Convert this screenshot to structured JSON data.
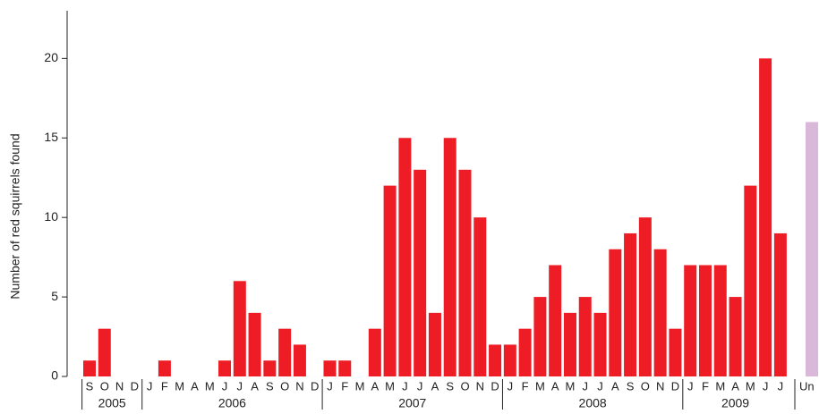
{
  "chart_data": {
    "type": "bar",
    "y_label": "Number of red squirrels found",
    "color": "#ee1c25",
    "groups": [
      {
        "label": "2005",
        "categories": [
          "S",
          "O",
          "N",
          "D"
        ]
      },
      {
        "label": "2006",
        "categories": [
          "J",
          "F",
          "M",
          "A",
          "M",
          "J",
          "J",
          "A",
          "S",
          "O",
          "N",
          "D"
        ]
      },
      {
        "label": "2007",
        "categories": [
          "J",
          "F",
          "M",
          "A",
          "M",
          "J",
          "J",
          "A",
          "S",
          "O",
          "N",
          "D"
        ]
      },
      {
        "label": "2008",
        "categories": [
          "J",
          "F",
          "M",
          "A",
          "M",
          "J",
          "J",
          "A",
          "S",
          "O",
          "N",
          "D"
        ]
      },
      {
        "label": "2009",
        "categories": [
          "J",
          "F",
          "M",
          "A",
          "M",
          "J",
          "J"
        ]
      }
    ],
    "values": [
      1,
      3,
      0,
      0,
      0,
      1,
      0,
      0,
      0,
      1,
      6,
      4,
      1,
      3,
      2,
      0,
      1,
      1,
      0,
      3,
      12,
      15,
      13,
      4,
      15,
      13,
      10,
      2,
      2,
      3,
      5,
      7,
      4,
      5,
      4,
      8,
      9,
      10,
      8,
      3,
      7,
      7,
      7,
      5,
      12,
      20,
      9
    ],
    "unknown": {
      "label": "Un",
      "value": 16,
      "color": "#d9b8d9"
    },
    "ylim": [
      0,
      23
    ],
    "yticks": [
      0,
      5,
      10,
      15,
      20
    ]
  }
}
